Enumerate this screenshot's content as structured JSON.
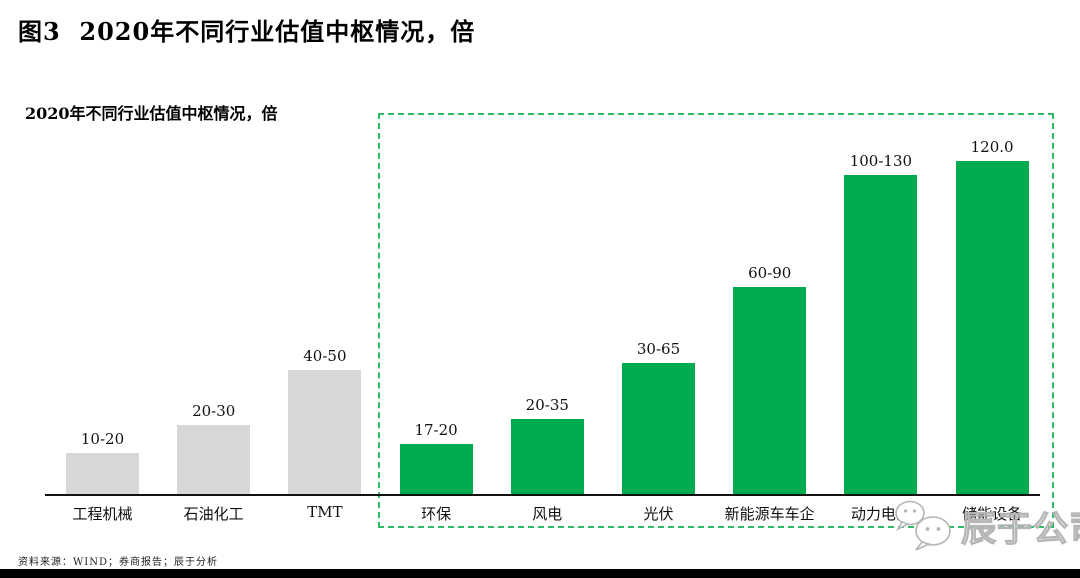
{
  "figure": {
    "title": "图3  2020年不同行业估值中枢情况，倍",
    "source_note": "资料来源：WIND；券商报告；辰于分析",
    "watermark_text": "辰于公司",
    "watermark_icon": "wechat-chat-bubbles-icon"
  },
  "chart_data": {
    "type": "bar",
    "title": "2020年不同行业估值中枢情况，倍",
    "unit": "倍",
    "xlabel": "",
    "ylabel": "",
    "ylim": [
      0,
      130
    ],
    "grid": false,
    "legend": "none",
    "categories": [
      "工程机械",
      "石油化工",
      "TMT",
      "环保",
      "风电",
      "光伏",
      "新能源车车企",
      "动力电池",
      "储能设备"
    ],
    "value_labels": [
      "10-20",
      "20-30",
      "40-50",
      "17-20",
      "20-35",
      "30-65",
      "60-90",
      "100-130",
      "120.0"
    ],
    "value_ranges": [
      [
        10,
        20
      ],
      [
        20,
        30
      ],
      [
        40,
        50
      ],
      [
        17,
        20
      ],
      [
        20,
        35
      ],
      [
        30,
        65
      ],
      [
        60,
        90
      ],
      [
        100,
        130
      ],
      [
        120,
        120
      ]
    ],
    "values_mid": [
      15,
      25,
      45,
      18.5,
      27.5,
      47.5,
      75,
      115,
      120
    ],
    "highlighted": [
      false,
      false,
      false,
      true,
      true,
      true,
      true,
      true,
      true
    ]
  },
  "colors": {
    "bar_default": "#D7D7D7",
    "bar_highlight": "#00AB4F",
    "highlight_box_border": "#2EBD62",
    "axis": "#111111",
    "watermark": "#B5B5B5"
  }
}
